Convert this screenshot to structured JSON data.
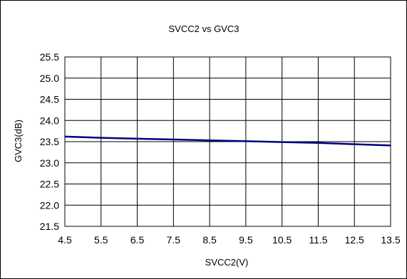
{
  "chart_data": {
    "type": "line",
    "title": "SVCC2 vs GVC3",
    "xlabel": "SVCC2(V)",
    "ylabel": "GVC3(dB)",
    "xlim": [
      4.5,
      13.5
    ],
    "ylim": [
      21.5,
      25.5
    ],
    "x_ticks": [
      "4.5",
      "5.5",
      "6.5",
      "7.5",
      "8.5",
      "9.5",
      "10.5",
      "11.5",
      "12.5",
      "13.5"
    ],
    "y_ticks": [
      "25.5",
      "25.0",
      "24.5",
      "24.0",
      "23.5",
      "23.0",
      "22.5",
      "22.0",
      "21.5"
    ],
    "grid": true,
    "legend": "none",
    "series": [
      {
        "color": "#000080",
        "x": [
          4.5,
          5.5,
          6.5,
          7.5,
          8.5,
          9.5,
          10.5,
          11.5,
          12.5,
          13.5
        ],
        "y": [
          23.62,
          23.59,
          23.57,
          23.55,
          23.53,
          23.51,
          23.49,
          23.47,
          23.44,
          23.41
        ]
      }
    ]
  }
}
